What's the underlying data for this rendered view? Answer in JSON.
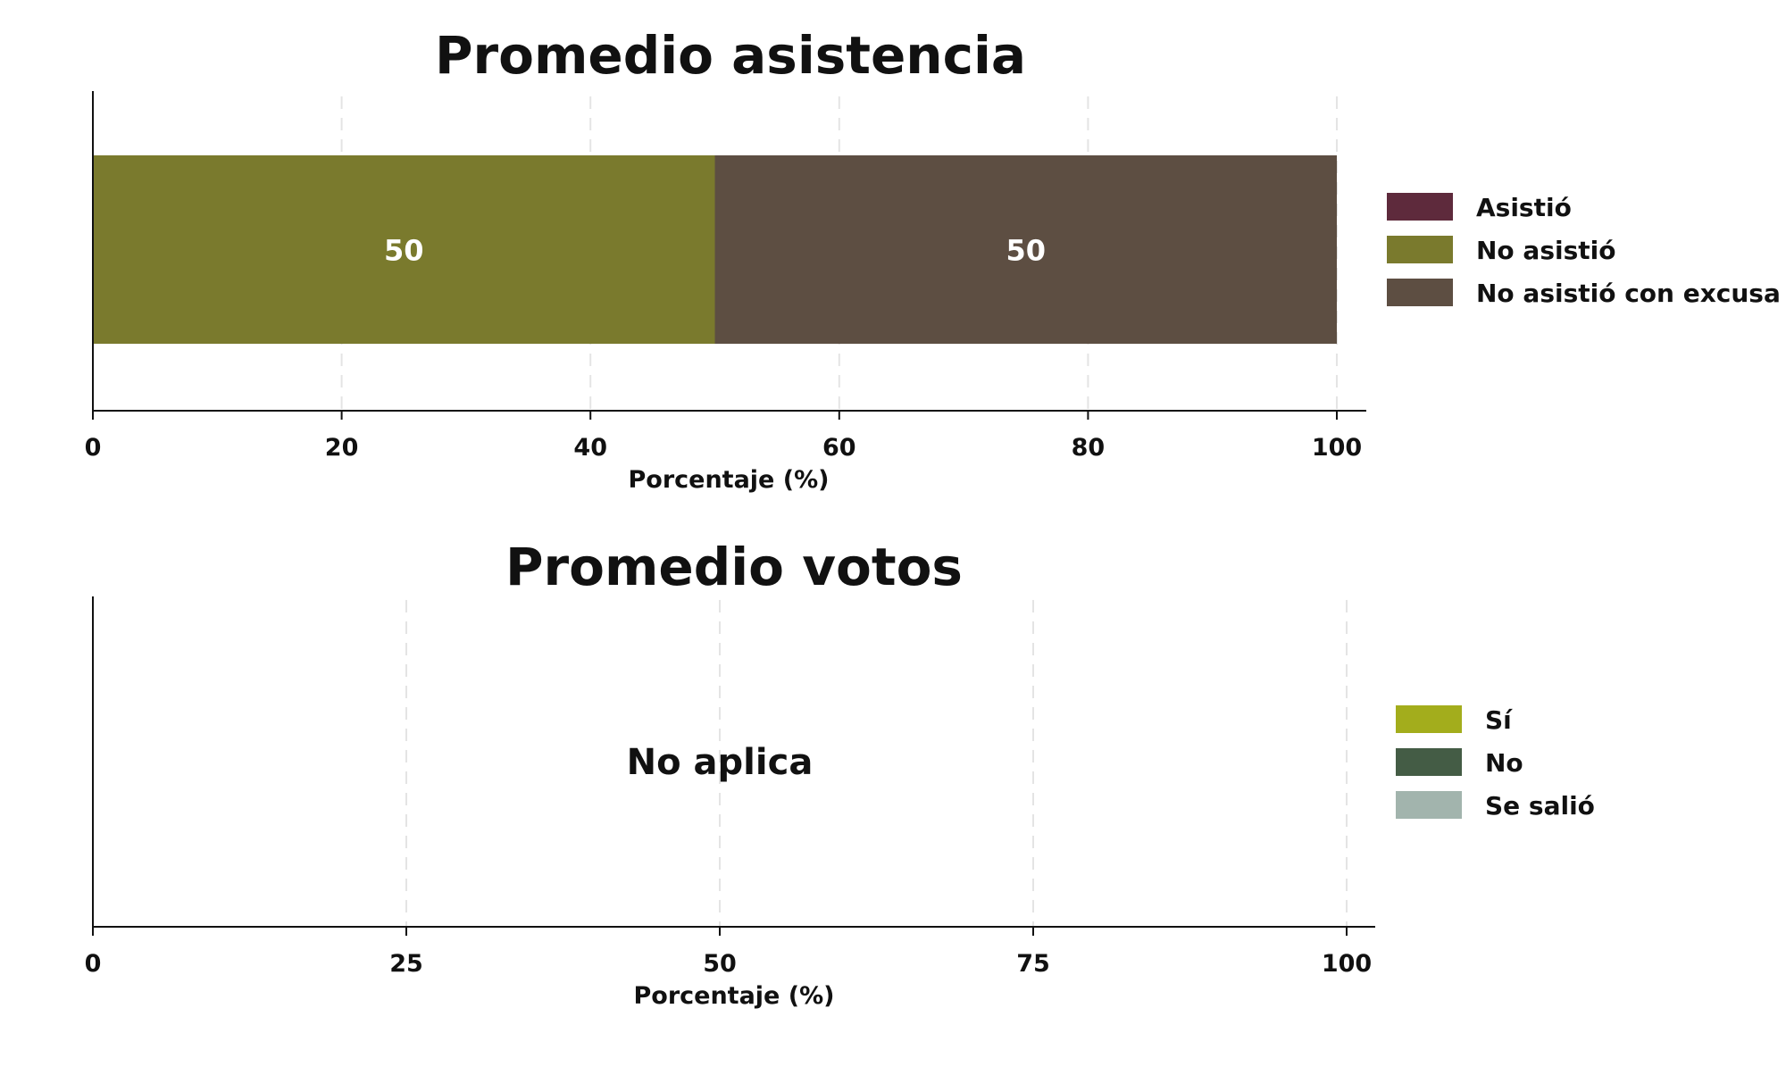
{
  "chart_data": [
    {
      "type": "bar",
      "orientation": "horizontal",
      "stacked": true,
      "title": "Promedio asistencia",
      "xlabel": "Porcentaje (%)",
      "xlim": [
        0,
        100
      ],
      "xticks": [
        0,
        20,
        40,
        60,
        80,
        100
      ],
      "grid": true,
      "legend_position": "right",
      "series": [
        {
          "name": "Asistió",
          "color": "#5e2a3c",
          "value": 0
        },
        {
          "name": "No asistió",
          "color": "#7a7a2d",
          "value": 50
        },
        {
          "name": "No asistió con excusa",
          "color": "#5d4e42",
          "value": 50
        }
      ],
      "data_labels": [
        "50",
        "50"
      ]
    },
    {
      "type": "bar",
      "orientation": "horizontal",
      "stacked": true,
      "title": "Promedio votos",
      "xlabel": "Porcentaje (%)",
      "xlim": [
        0,
        100
      ],
      "xticks": [
        0,
        25,
        50,
        75,
        100
      ],
      "grid": true,
      "legend_position": "right",
      "annotation": "No aplica",
      "series": [
        {
          "name": "Sí",
          "color": "#a3ad1c"
        },
        {
          "name": "No",
          "color": "#445c45"
        },
        {
          "name": "Se salió",
          "color": "#a2b4ad"
        }
      ]
    }
  ]
}
